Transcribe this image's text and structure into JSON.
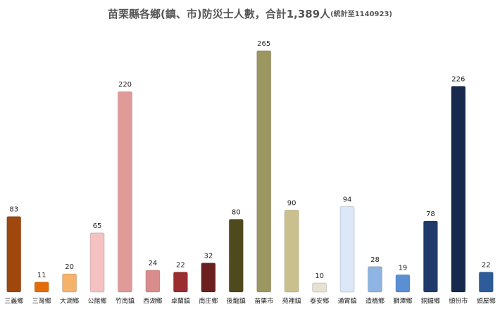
{
  "chart_data": {
    "type": "bar",
    "title": "苗栗縣各鄉(鎮、市)防災士人數，合計1,389人",
    "subtitle": "(統計至1140923)",
    "categories": [
      "三義鄉",
      "三灣鄉",
      "大湖鄉",
      "公館鄉",
      "竹南鎮",
      "西湖鄉",
      "卓蘭鎮",
      "南庄鄉",
      "後龍鎮",
      "苗栗市",
      "苑裡鎮",
      "泰安鄉",
      "通霄鎮",
      "造橋鄉",
      "獅潭鄉",
      "銅鑼鄉",
      "頭份市",
      "頭屋鄉"
    ],
    "values": [
      83,
      11,
      20,
      65,
      220,
      24,
      22,
      32,
      80,
      265,
      90,
      10,
      94,
      28,
      19,
      78,
      226,
      22
    ],
    "colors": [
      "#a0470e",
      "#e36c09",
      "#f5b26b",
      "#f4c2c2",
      "#e09a98",
      "#d98c8c",
      "#9b2d30",
      "#6b1f1f",
      "#4f4a1e",
      "#9c9660",
      "#c9c08e",
      "#e6e2cf",
      "#dce7f7",
      "#8db4e2",
      "#5b8fd4",
      "#1f3b6b",
      "#17294d",
      "#2e5c9a"
    ]
  }
}
